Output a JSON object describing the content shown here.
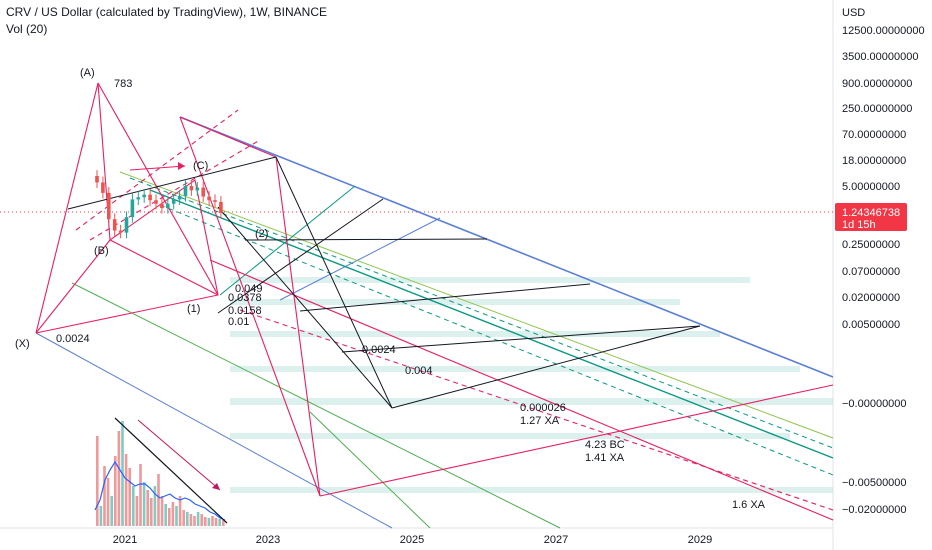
{
  "header": {
    "title": "CRV / US Dollar (calculated by TradingView), 1W, BINANCE",
    "indicator": "Vol (20)"
  },
  "currency": "USD",
  "price_tag": {
    "value": "1.24346738",
    "countdown": "1d 15h"
  },
  "chart_data": {
    "type": "line",
    "title": "CRV / US Dollar (calculated by TradingView), 1W, BINANCE",
    "xlabel": "",
    "ylabel": "USD",
    "y_scale": "log",
    "x_tick_labels": [
      "2021",
      "2023",
      "2025",
      "2027",
      "2029"
    ],
    "y_tick_labels": [
      "12500.00000000",
      "3500.00000000",
      "900.00000000",
      "250.00000000",
      "70.00000000",
      "18.00000000",
      "5.00000000",
      "0.25000000",
      "0.07000000",
      "0.02000000",
      "0.00500000",
      "−0.00000000",
      "−0.00500000",
      "−0.02000000"
    ],
    "last_price": 1.24346738,
    "pattern_points": [
      "(X)",
      "(A)",
      "(B)",
      "(C)",
      "(1)",
      "(2)"
    ],
    "annotations": [
      "783",
      "0.0024",
      "0.049",
      "0.0378",
      "0.0158",
      "0.01",
      "0.0024",
      "0.004",
      "0.000026",
      "1.27 XA",
      "4.23 BC",
      "1.41 XA",
      "1.6 XA"
    ],
    "price_series": {
      "name": "CRV/USD",
      "x": [
        "2020-08",
        "2020-09",
        "2020-10",
        "2020-11",
        "2020-12",
        "2021-01",
        "2021-02",
        "2021-03",
        "2021-04",
        "2021-05",
        "2021-06",
        "2021-07",
        "2021-08",
        "2021-09",
        "2021-10",
        "2021-11",
        "2021-12",
        "2022-01",
        "2022-02",
        "2022-03",
        "2022-04",
        "2022-05"
      ],
      "values": [
        6.0,
        3.5,
        0.9,
        0.5,
        0.45,
        1.0,
        2.5,
        2.8,
        3.2,
        2.4,
        2.0,
        1.6,
        2.0,
        2.5,
        3.0,
        5.0,
        4.0,
        4.6,
        2.9,
        2.4,
        2.2,
        1.24
      ]
    }
  },
  "colors": {
    "pink": "#e91e63",
    "blue": "#5b7fd6",
    "green": "#4caf50",
    "teal": "#089981",
    "black": "#131722",
    "candle_up": "#26a69a",
    "candle_down": "#ef5350",
    "price_line": "#f23645"
  }
}
